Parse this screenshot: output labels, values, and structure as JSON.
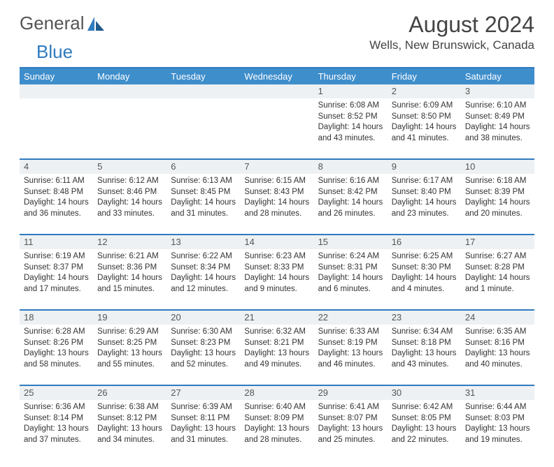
{
  "brand": {
    "text1": "General",
    "text2": "Blue"
  },
  "title": "August 2024",
  "location": "Wells, New Brunswick, Canada",
  "colors": {
    "header_bar": "#3f8ecc",
    "header_text": "#ffffff",
    "rule": "#2f7bbf",
    "daynum_bg": "#eef1f3",
    "body_text": "#333333",
    "title_text": "#444444"
  },
  "weekdays": [
    "Sunday",
    "Monday",
    "Tuesday",
    "Wednesday",
    "Thursday",
    "Friday",
    "Saturday"
  ],
  "weeks": [
    [
      {
        "n": "",
        "sr": "",
        "ss": "",
        "dl": ""
      },
      {
        "n": "",
        "sr": "",
        "ss": "",
        "dl": ""
      },
      {
        "n": "",
        "sr": "",
        "ss": "",
        "dl": ""
      },
      {
        "n": "",
        "sr": "",
        "ss": "",
        "dl": ""
      },
      {
        "n": "1",
        "sr": "Sunrise: 6:08 AM",
        "ss": "Sunset: 8:52 PM",
        "dl": "Daylight: 14 hours and 43 minutes."
      },
      {
        "n": "2",
        "sr": "Sunrise: 6:09 AM",
        "ss": "Sunset: 8:50 PM",
        "dl": "Daylight: 14 hours and 41 minutes."
      },
      {
        "n": "3",
        "sr": "Sunrise: 6:10 AM",
        "ss": "Sunset: 8:49 PM",
        "dl": "Daylight: 14 hours and 38 minutes."
      }
    ],
    [
      {
        "n": "4",
        "sr": "Sunrise: 6:11 AM",
        "ss": "Sunset: 8:48 PM",
        "dl": "Daylight: 14 hours and 36 minutes."
      },
      {
        "n": "5",
        "sr": "Sunrise: 6:12 AM",
        "ss": "Sunset: 8:46 PM",
        "dl": "Daylight: 14 hours and 33 minutes."
      },
      {
        "n": "6",
        "sr": "Sunrise: 6:13 AM",
        "ss": "Sunset: 8:45 PM",
        "dl": "Daylight: 14 hours and 31 minutes."
      },
      {
        "n": "7",
        "sr": "Sunrise: 6:15 AM",
        "ss": "Sunset: 8:43 PM",
        "dl": "Daylight: 14 hours and 28 minutes."
      },
      {
        "n": "8",
        "sr": "Sunrise: 6:16 AM",
        "ss": "Sunset: 8:42 PM",
        "dl": "Daylight: 14 hours and 26 minutes."
      },
      {
        "n": "9",
        "sr": "Sunrise: 6:17 AM",
        "ss": "Sunset: 8:40 PM",
        "dl": "Daylight: 14 hours and 23 minutes."
      },
      {
        "n": "10",
        "sr": "Sunrise: 6:18 AM",
        "ss": "Sunset: 8:39 PM",
        "dl": "Daylight: 14 hours and 20 minutes."
      }
    ],
    [
      {
        "n": "11",
        "sr": "Sunrise: 6:19 AM",
        "ss": "Sunset: 8:37 PM",
        "dl": "Daylight: 14 hours and 17 minutes."
      },
      {
        "n": "12",
        "sr": "Sunrise: 6:21 AM",
        "ss": "Sunset: 8:36 PM",
        "dl": "Daylight: 14 hours and 15 minutes."
      },
      {
        "n": "13",
        "sr": "Sunrise: 6:22 AM",
        "ss": "Sunset: 8:34 PM",
        "dl": "Daylight: 14 hours and 12 minutes."
      },
      {
        "n": "14",
        "sr": "Sunrise: 6:23 AM",
        "ss": "Sunset: 8:33 PM",
        "dl": "Daylight: 14 hours and 9 minutes."
      },
      {
        "n": "15",
        "sr": "Sunrise: 6:24 AM",
        "ss": "Sunset: 8:31 PM",
        "dl": "Daylight: 14 hours and 6 minutes."
      },
      {
        "n": "16",
        "sr": "Sunrise: 6:25 AM",
        "ss": "Sunset: 8:30 PM",
        "dl": "Daylight: 14 hours and 4 minutes."
      },
      {
        "n": "17",
        "sr": "Sunrise: 6:27 AM",
        "ss": "Sunset: 8:28 PM",
        "dl": "Daylight: 14 hours and 1 minute."
      }
    ],
    [
      {
        "n": "18",
        "sr": "Sunrise: 6:28 AM",
        "ss": "Sunset: 8:26 PM",
        "dl": "Daylight: 13 hours and 58 minutes."
      },
      {
        "n": "19",
        "sr": "Sunrise: 6:29 AM",
        "ss": "Sunset: 8:25 PM",
        "dl": "Daylight: 13 hours and 55 minutes."
      },
      {
        "n": "20",
        "sr": "Sunrise: 6:30 AM",
        "ss": "Sunset: 8:23 PM",
        "dl": "Daylight: 13 hours and 52 minutes."
      },
      {
        "n": "21",
        "sr": "Sunrise: 6:32 AM",
        "ss": "Sunset: 8:21 PM",
        "dl": "Daylight: 13 hours and 49 minutes."
      },
      {
        "n": "22",
        "sr": "Sunrise: 6:33 AM",
        "ss": "Sunset: 8:19 PM",
        "dl": "Daylight: 13 hours and 46 minutes."
      },
      {
        "n": "23",
        "sr": "Sunrise: 6:34 AM",
        "ss": "Sunset: 8:18 PM",
        "dl": "Daylight: 13 hours and 43 minutes."
      },
      {
        "n": "24",
        "sr": "Sunrise: 6:35 AM",
        "ss": "Sunset: 8:16 PM",
        "dl": "Daylight: 13 hours and 40 minutes."
      }
    ],
    [
      {
        "n": "25",
        "sr": "Sunrise: 6:36 AM",
        "ss": "Sunset: 8:14 PM",
        "dl": "Daylight: 13 hours and 37 minutes."
      },
      {
        "n": "26",
        "sr": "Sunrise: 6:38 AM",
        "ss": "Sunset: 8:12 PM",
        "dl": "Daylight: 13 hours and 34 minutes."
      },
      {
        "n": "27",
        "sr": "Sunrise: 6:39 AM",
        "ss": "Sunset: 8:11 PM",
        "dl": "Daylight: 13 hours and 31 minutes."
      },
      {
        "n": "28",
        "sr": "Sunrise: 6:40 AM",
        "ss": "Sunset: 8:09 PM",
        "dl": "Daylight: 13 hours and 28 minutes."
      },
      {
        "n": "29",
        "sr": "Sunrise: 6:41 AM",
        "ss": "Sunset: 8:07 PM",
        "dl": "Daylight: 13 hours and 25 minutes."
      },
      {
        "n": "30",
        "sr": "Sunrise: 6:42 AM",
        "ss": "Sunset: 8:05 PM",
        "dl": "Daylight: 13 hours and 22 minutes."
      },
      {
        "n": "31",
        "sr": "Sunrise: 6:44 AM",
        "ss": "Sunset: 8:03 PM",
        "dl": "Daylight: 13 hours and 19 minutes."
      }
    ]
  ]
}
